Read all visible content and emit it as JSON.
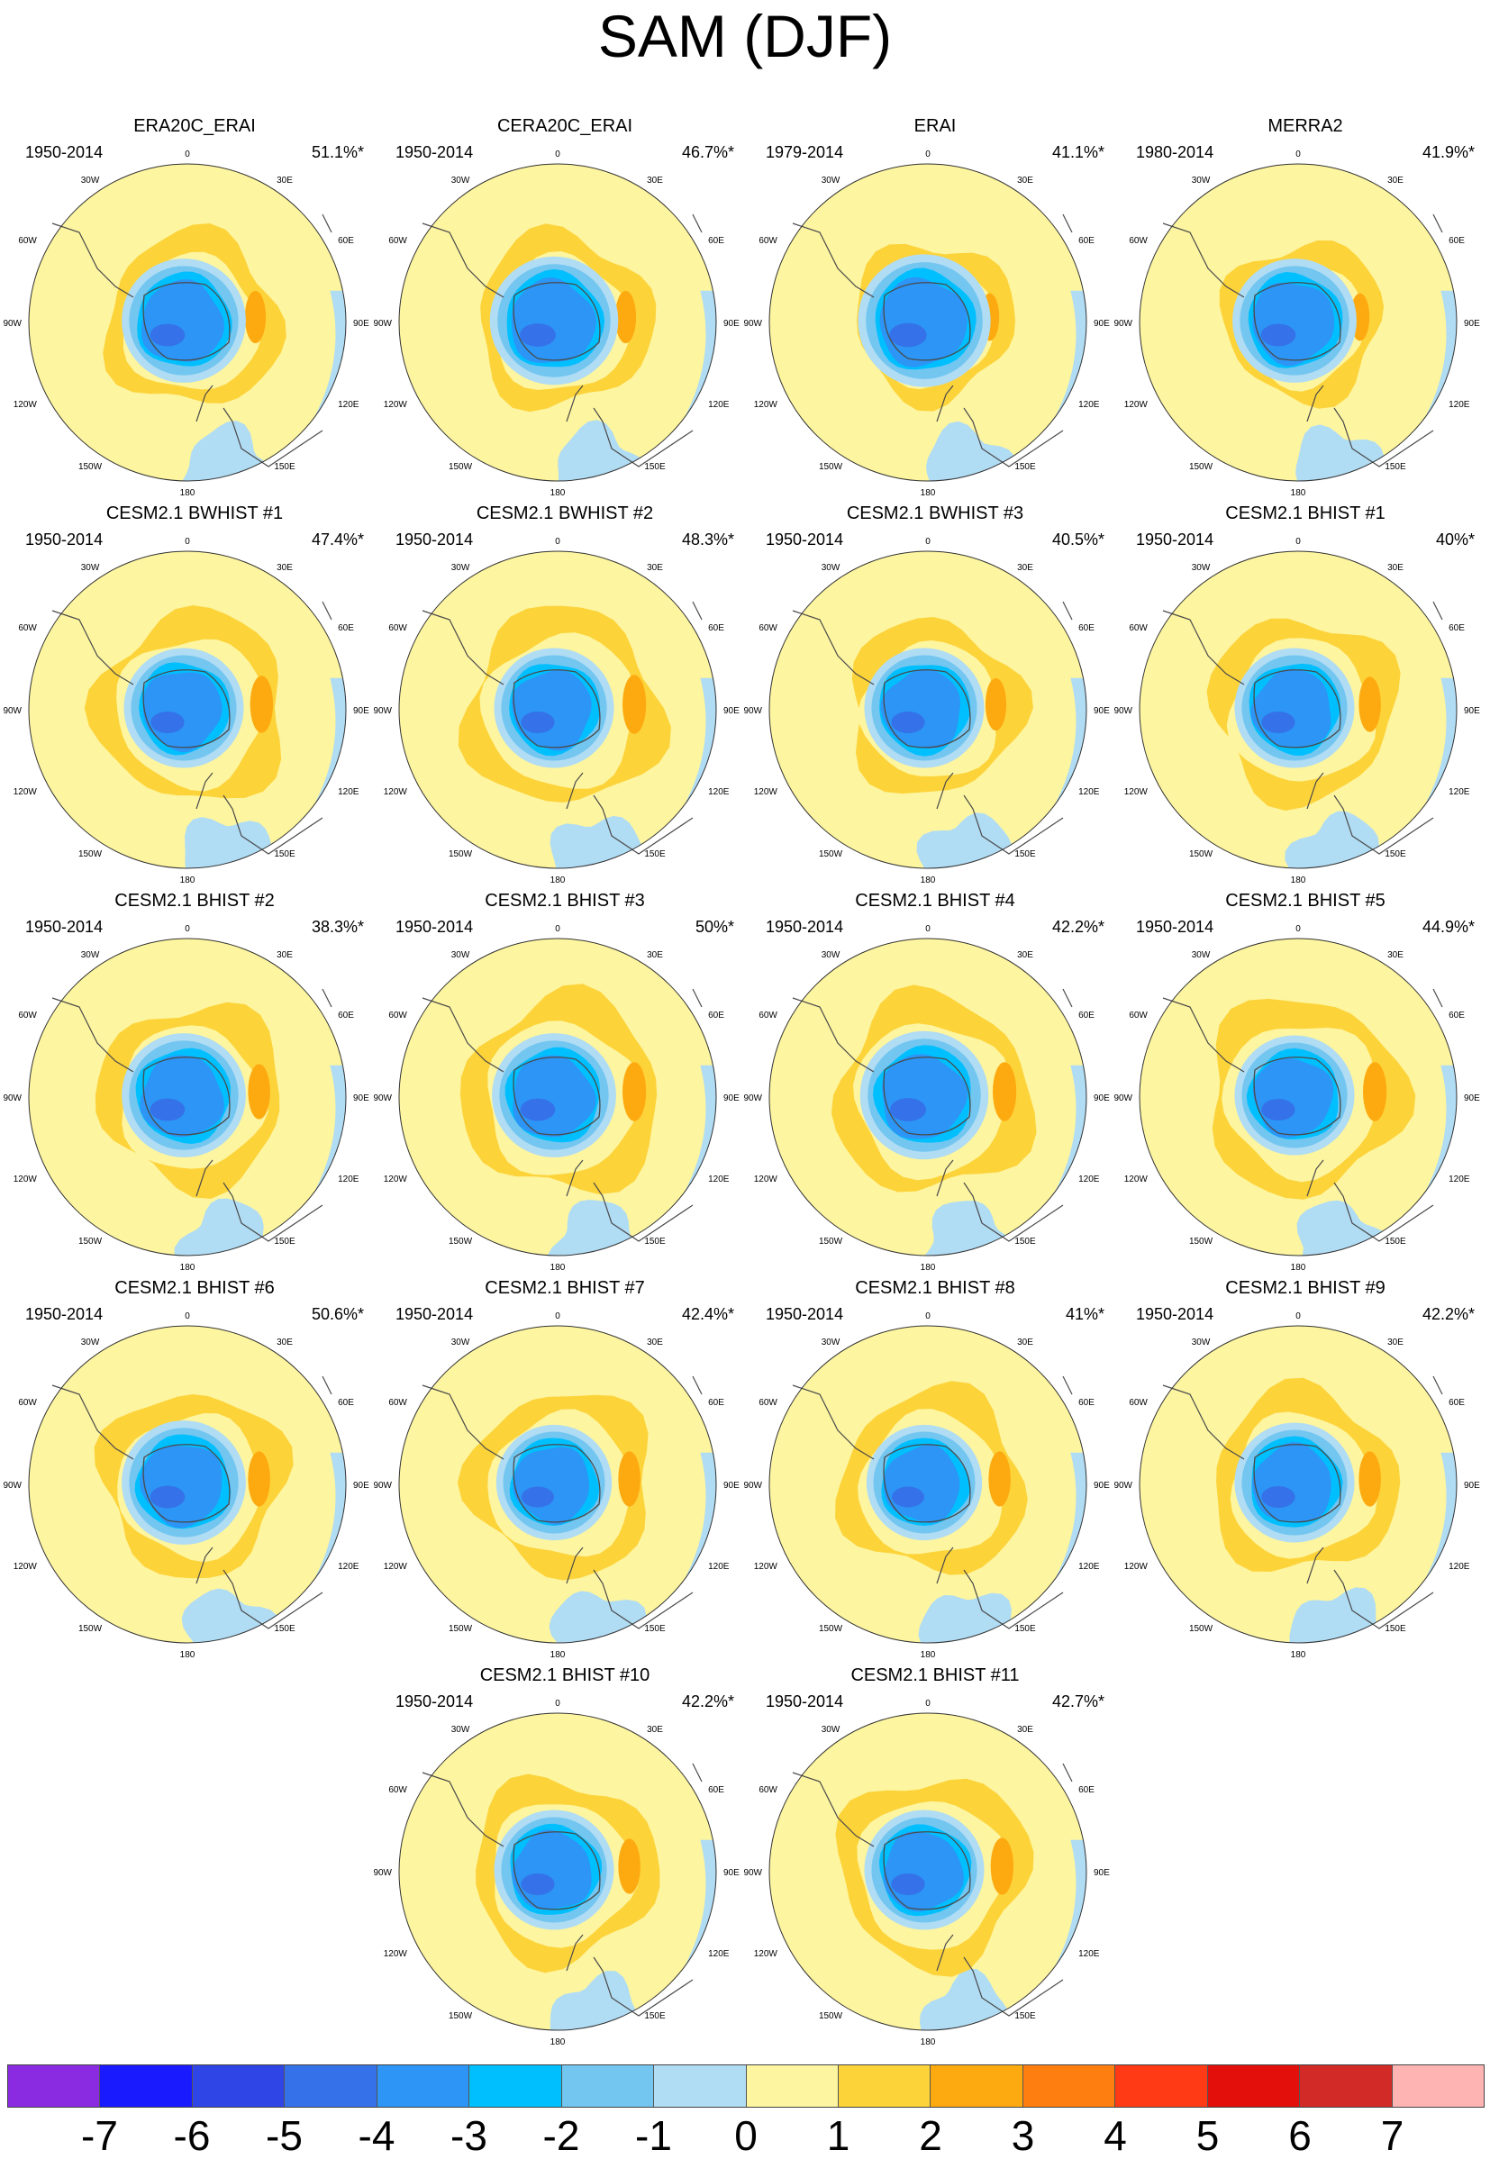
{
  "title": "SAM (DJF)",
  "colors": {
    "levels": [
      "#8a2be2",
      "#1a1aff",
      "#2f45e6",
      "#3571e8",
      "#2c95f5",
      "#00bfff",
      "#72c6f0",
      "#b0dcf4",
      "#fdf5a0",
      "#fdd33a",
      "#fdaa10",
      "#ff7e10",
      "#ff3a14",
      "#e30f0a",
      "#d22a26",
      "#ffb4b4"
    ],
    "land": "#4a4a4a"
  },
  "colorbar": {
    "labels": [
      "-7",
      "-6",
      "-5",
      "-4",
      "-3",
      "-2",
      "-1",
      "0",
      "1",
      "2",
      "3",
      "4",
      "5",
      "6",
      "7"
    ]
  },
  "map_labels": {
    "top": "0",
    "top_left": "30W",
    "top_right": "30E",
    "left_upper": "60W",
    "right_upper": "60E",
    "left_mid": "90W",
    "right_mid": "90E",
    "left_lower": "120W",
    "right_lower": "120E",
    "bottom_left": "150W",
    "bottom_right": "150E",
    "bottom": "180"
  },
  "panels": [
    {
      "title": "ERA20C_ERAI",
      "period": "1950-2014",
      "variance": "51.1%*",
      "core": 0.29,
      "ring": 0.55
    },
    {
      "title": "CERA20C_ERAI",
      "period": "1950-2014",
      "variance": "46.7%*",
      "core": 0.3,
      "ring": 0.55
    },
    {
      "title": "ERAI",
      "period": "1979-2014",
      "variance": "41.1%*",
      "core": 0.31,
      "ring": 0.5
    },
    {
      "title": "MERRA2",
      "period": "1980-2014",
      "variance": "41.9%*",
      "core": 0.29,
      "ring": 0.5
    },
    {
      "title": "CESM2.1 BWHIST #1",
      "period": "1950-2014",
      "variance": "47.4%*",
      "core": 0.28,
      "ring": 0.6
    },
    {
      "title": "CESM2.1 BWHIST #2",
      "period": "1950-2014",
      "variance": "48.3%*",
      "core": 0.28,
      "ring": 0.62
    },
    {
      "title": "CESM2.1 BWHIST #3",
      "period": "1950-2014",
      "variance": "40.5%*",
      "core": 0.28,
      "ring": 0.55
    },
    {
      "title": "CESM2.1 BHIST #1",
      "period": "1950-2014",
      "variance": "40%*",
      "core": 0.28,
      "ring": 0.58
    },
    {
      "title": "CESM2.1 BHIST #2",
      "period": "1950-2014",
      "variance": "38.3%*",
      "core": 0.29,
      "ring": 0.58
    },
    {
      "title": "CESM2.1 BHIST #3",
      "period": "1950-2014",
      "variance": "50%*",
      "core": 0.29,
      "ring": 0.62
    },
    {
      "title": "CESM2.1 BHIST #4",
      "period": "1950-2014",
      "variance": "42.2%*",
      "core": 0.3,
      "ring": 0.62
    },
    {
      "title": "CESM2.1 BHIST #5",
      "period": "1950-2014",
      "variance": "44.9%*",
      "core": 0.28,
      "ring": 0.62
    },
    {
      "title": "CESM2.1 BHIST #6",
      "period": "1950-2014",
      "variance": "50.6%*",
      "core": 0.29,
      "ring": 0.58
    },
    {
      "title": "CESM2.1 BHIST #7",
      "period": "1950-2014",
      "variance": "42.4%*",
      "core": 0.27,
      "ring": 0.58
    },
    {
      "title": "CESM2.1 BHIST #8",
      "period": "1950-2014",
      "variance": "41%*",
      "core": 0.27,
      "ring": 0.58
    },
    {
      "title": "CESM2.1 BHIST #9",
      "period": "1950-2014",
      "variance": "42.2%*",
      "core": 0.28,
      "ring": 0.58
    },
    {
      "title": "CESM2.1 BHIST #10",
      "period": "1950-2014",
      "variance": "42.2%*",
      "core": 0.28,
      "ring": 0.58
    },
    {
      "title": "CESM2.1 BHIST #11",
      "period": "1950-2014",
      "variance": "42.7%*",
      "core": 0.28,
      "ring": 0.6
    }
  ]
}
